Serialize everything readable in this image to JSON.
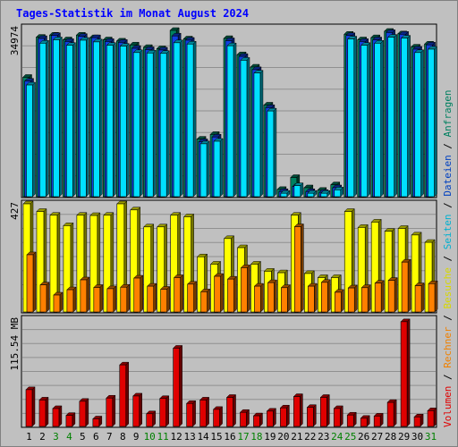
{
  "title": "Tages-Statistik im Monat August 2024",
  "right_labels": {
    "top": [
      {
        "text": "Anfragen",
        "color": "#008060"
      },
      {
        "text": "Dateien",
        "color": "#0040c0"
      },
      {
        "text": "Seiten",
        "color": "#00b0d0"
      },
      {
        "text": "Besuche",
        "color": "#d8d800"
      },
      {
        "text": "Rechner",
        "color": "#f08000"
      },
      {
        "text": "Volumen",
        "color": "#e00000"
      }
    ],
    "separator": " / "
  },
  "colors": {
    "background": "#c0c0c0",
    "plot_bg": "#c0c0c0",
    "grid": "#909090",
    "title": "#0000ff",
    "anfragen": "#008060",
    "dateien": "#1040e0",
    "seiten": "#00e0ff",
    "besuche": "#ffff00",
    "rechner": "#ff8000",
    "volumen": "#e00000",
    "weekend_day": "#008000",
    "weekday": "#000000"
  },
  "chart_data": [
    {
      "type": "bar",
      "panel": "top",
      "ytick_label": "34974",
      "ylim": [
        0,
        39000
      ],
      "series": [
        {
          "name": "Anfragen",
          "values": [
            28000,
            37400,
            37900,
            36800,
            37900,
            37300,
            36800,
            36500,
            35600,
            35000,
            34700,
            39000,
            37000,
            13500,
            14600,
            37100,
            33300,
            30400,
            21500,
            1700,
            4500,
            2100,
            1500,
            2800,
            38100,
            36800,
            37300,
            38800,
            38200,
            35100,
            35800
          ]
        },
        {
          "name": "Dateien",
          "values": [
            27100,
            37100,
            37800,
            36400,
            37600,
            37300,
            36400,
            36200,
            34800,
            34500,
            34400,
            37700,
            36700,
            12900,
            14000,
            36600,
            32900,
            29800,
            20900,
            1200,
            2400,
            1200,
            1000,
            2100,
            37800,
            36400,
            36800,
            38500,
            38100,
            34600,
            35600
          ]
        },
        {
          "name": "Seiten",
          "values": [
            26200,
            36000,
            36800,
            35500,
            36700,
            36300,
            35500,
            35300,
            33800,
            33700,
            33600,
            36100,
            35800,
            12400,
            13000,
            35400,
            32000,
            29000,
            20100,
            800,
            2600,
            800,
            800,
            1600,
            37000,
            35500,
            36000,
            37400,
            37200,
            33800,
            34600
          ]
        },
        {
          "name": "Besuche",
          "values": [
            427,
            397,
            382,
            341,
            382,
            381,
            382,
            427,
            403,
            336,
            336,
            382,
            376,
            218,
            189,
            290,
            254,
            189,
            161,
            155,
            382,
            152,
            136,
            136,
            397,
            334,
            355,
            319,
            330,
            304,
            275
          ]
        },
        {
          "name": "Rechner",
          "values": [
            226,
            107,
            67,
            88,
            127,
            97,
            92,
            98,
            134,
            102,
            90,
            136,
            110,
            80,
            141,
            130,
            175,
            102,
            116,
            96,
            337,
            102,
            117,
            78,
            95,
            96,
            114,
            125,
            197,
            104,
            112
          ]
        },
        {
          "name": "Volumen",
          "values": [
            39.6,
            28.5,
            19.3,
            11.9,
            27.1,
            8.2,
            30.6,
            66.3,
            32.8,
            13.7,
            30.1,
            84.3,
            24.8,
            28.5,
            18.4,
            31.3,
            15.2,
            11.5,
            16.5,
            20.0,
            32.2,
            20.5,
            31.3,
            19.3,
            12.3,
            8.8,
            11.2,
            25.9,
            112.8,
            10.3,
            17.0
          ]
        }
      ]
    },
    {
      "type": "bar",
      "panel": "middle",
      "ytick_label": "427",
      "ylim": [
        0,
        427
      ]
    },
    {
      "type": "bar",
      "panel": "bottom",
      "ytick_label": "115.54 MB",
      "ylim": [
        0,
        115.54
      ]
    }
  ],
  "days": [
    {
      "label": "1",
      "weekend": false
    },
    {
      "label": "2",
      "weekend": false
    },
    {
      "label": "3",
      "weekend": true
    },
    {
      "label": "4",
      "weekend": true
    },
    {
      "label": "5",
      "weekend": false
    },
    {
      "label": "6",
      "weekend": false
    },
    {
      "label": "7",
      "weekend": false
    },
    {
      "label": "8",
      "weekend": false
    },
    {
      "label": "9",
      "weekend": false
    },
    {
      "label": "10",
      "weekend": true
    },
    {
      "label": "11",
      "weekend": true
    },
    {
      "label": "12",
      "weekend": false
    },
    {
      "label": "13",
      "weekend": false
    },
    {
      "label": "14",
      "weekend": false
    },
    {
      "label": "15",
      "weekend": false
    },
    {
      "label": "16",
      "weekend": false
    },
    {
      "label": "17",
      "weekend": true
    },
    {
      "label": "18",
      "weekend": true
    },
    {
      "label": "19",
      "weekend": false
    },
    {
      "label": "20",
      "weekend": false
    },
    {
      "label": "21",
      "weekend": false
    },
    {
      "label": "22",
      "weekend": false
    },
    {
      "label": "23",
      "weekend": false
    },
    {
      "label": "24",
      "weekend": true
    },
    {
      "label": "25",
      "weekend": true
    },
    {
      "label": "26",
      "weekend": false
    },
    {
      "label": "27",
      "weekend": false
    },
    {
      "label": "28",
      "weekend": false
    },
    {
      "label": "29",
      "weekend": false
    },
    {
      "label": "30",
      "weekend": false
    },
    {
      "label": "31",
      "weekend": true
    }
  ]
}
